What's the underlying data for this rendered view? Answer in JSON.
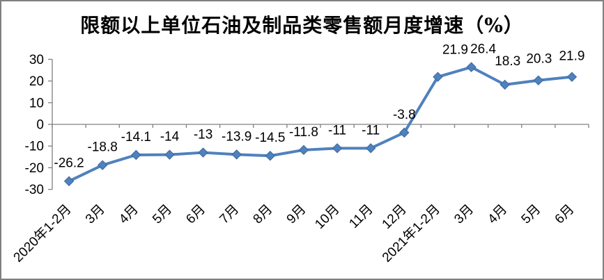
{
  "chart_data": {
    "type": "line",
    "title": "限额以上单位石油及制品类零售额月度增速（%）",
    "categories": [
      "2020年1-2月",
      "3月",
      "4月",
      "5月",
      "6月",
      "7月",
      "8月",
      "9月",
      "10月",
      "11月",
      "12月",
      "2021年1-2月",
      "3月",
      "4月",
      "5月",
      "6月"
    ],
    "series": [
      {
        "name": "限额以上单位石油及制品类零售额月度增速",
        "values": [
          -26.2,
          -18.8,
          -14.1,
          -14,
          -13,
          -13.9,
          -14.5,
          -11.8,
          -11,
          -11,
          -3.8,
          21.9,
          26.4,
          18.3,
          20.3,
          21.9
        ]
      }
    ],
    "point_labels": [
      "-26.2",
      "-18.8",
      "-14.1",
      "-14",
      "-13",
      "-13.9",
      "-14.5",
      "-11.8",
      "-11",
      "-11",
      "-3.8",
      "21.9",
      "26.4",
      "18.3",
      "20.3",
      "21.9"
    ],
    "xlabel": "",
    "ylabel": "",
    "ylim": [
      -30,
      30
    ],
    "y_ticks": [
      30,
      20,
      10,
      0,
      -10,
      -20,
      -30
    ],
    "grid": false,
    "legend_position": "none",
    "colors": {
      "series": "#4F81BD",
      "marker_edge": "#3A679C",
      "axis": "#808080",
      "text": "#000000",
      "frame_border": "#808080",
      "background": "#FFFFFF"
    }
  }
}
